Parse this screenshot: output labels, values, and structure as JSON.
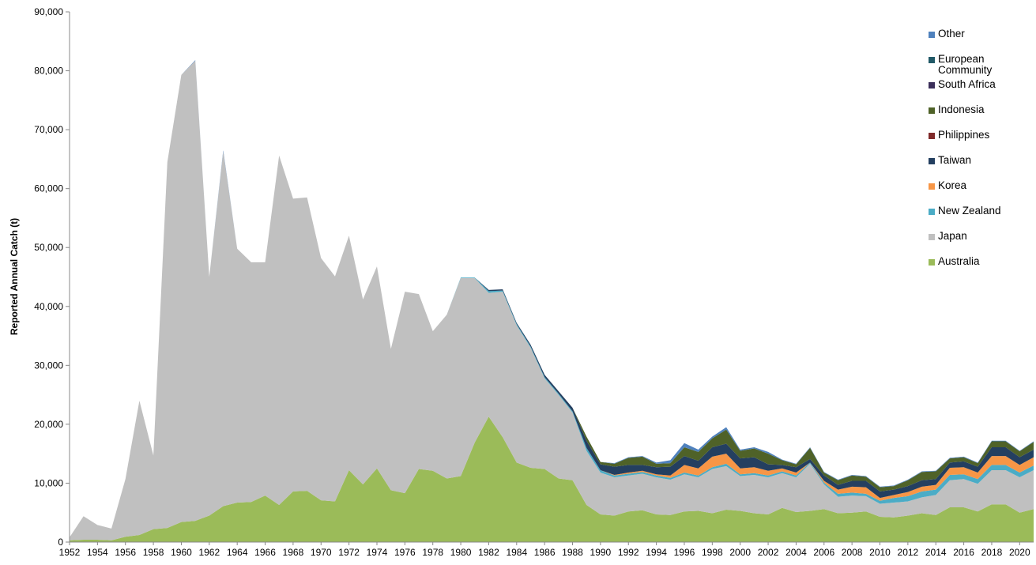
{
  "chart_data": {
    "type": "stacked-area",
    "y_label": "Reported Annual Catch (t)",
    "x": [
      1952,
      1953,
      1954,
      1955,
      1956,
      1957,
      1958,
      1959,
      1960,
      1961,
      1962,
      1963,
      1964,
      1965,
      1966,
      1967,
      1968,
      1969,
      1970,
      1971,
      1972,
      1973,
      1974,
      1975,
      1976,
      1977,
      1978,
      1979,
      1980,
      1981,
      1982,
      1983,
      1984,
      1985,
      1986,
      1987,
      1988,
      1989,
      1990,
      1991,
      1992,
      1993,
      1994,
      1995,
      1996,
      1997,
      1998,
      1999,
      2000,
      2001,
      2002,
      2003,
      2004,
      2005,
      2006,
      2007,
      2008,
      2009,
      2010,
      2011,
      2012,
      2013,
      2014,
      2015,
      2016,
      2017,
      2018,
      2019,
      2020,
      2021
    ],
    "xlim": [
      1952,
      2021
    ],
    "xticks": [
      1952,
      1954,
      1956,
      1958,
      1960,
      1962,
      1964,
      1966,
      1968,
      1970,
      1972,
      1974,
      1976,
      1978,
      1980,
      1982,
      1984,
      1986,
      1988,
      1990,
      1992,
      1994,
      1996,
      1998,
      2000,
      2002,
      2004,
      2006,
      2008,
      2010,
      2012,
      2014,
      2016,
      2018,
      2020
    ],
    "ylim": [
      0,
      90000
    ],
    "yticks": [
      0,
      {
        "value": 10000,
        "label": "10,000"
      },
      {
        "value": 20000,
        "label": "20,000"
      },
      {
        "value": 30000,
        "label": "30,000"
      },
      {
        "value": 40000,
        "label": "40,000"
      },
      {
        "value": 50000,
        "label": "50,000"
      },
      {
        "value": 60000,
        "label": "60,000"
      },
      {
        "value": 70000,
        "label": "70,000"
      },
      {
        "value": 80000,
        "label": "80,000"
      },
      {
        "value": 90000,
        "label": "90,000"
      }
    ],
    "grid": false,
    "legend": "top-right",
    "series": [
      {
        "name": "Australia",
        "color": "#9bbb59",
        "values": [
          300,
          400,
          400,
          300,
          900,
          1200,
          2200,
          2400,
          3400,
          3600,
          4500,
          6100,
          6700,
          6800,
          7900,
          6300,
          8600,
          8700,
          7100,
          6900,
          12200,
          9800,
          12500,
          8800,
          8300,
          12400,
          12100,
          10800,
          11200,
          16900,
          21300,
          17800,
          13500,
          12600,
          12400,
          10800,
          10500,
          6300,
          4700,
          4500,
          5200,
          5400,
          4700,
          4600,
          5200,
          5300,
          4900,
          5500,
          5300,
          4900,
          4700,
          5800,
          5100,
          5300,
          5600,
          4900,
          5000,
          5200,
          4300,
          4200,
          4500,
          4900,
          4600,
          5900,
          5900,
          5200,
          6400,
          6400,
          5000,
          5600
        ]
      },
      {
        "name": "Japan",
        "color": "#c0c0c0",
        "values": [
          500,
          4000,
          2500,
          2000,
          9800,
          22800,
          12500,
          62100,
          75900,
          78100,
          40500,
          60200,
          43100,
          40700,
          39600,
          59300,
          49700,
          49800,
          41100,
          38200,
          39800,
          31400,
          34300,
          24000,
          34200,
          29700,
          23700,
          27800,
          33600,
          27900,
          21000,
          24700,
          23300,
          20400,
          15400,
          14200,
          11500,
          9200,
          7100,
          6500,
          6100,
          6200,
          6300,
          6000,
          6300,
          5700,
          7500,
          7400,
          5900,
          6500,
          6300,
          5900,
          5900,
          8000,
          4200,
          2800,
          2900,
          2600,
          2200,
          2500,
          2400,
          2700,
          3400,
          4600,
          4800,
          4700,
          5800,
          5800,
          6000,
          6600
        ]
      },
      {
        "name": "New Zealand",
        "color": "#4bacc6",
        "values": [
          0,
          0,
          0,
          0,
          0,
          0,
          0,
          0,
          0,
          0,
          0,
          0,
          0,
          0,
          0,
          0,
          0,
          0,
          0,
          0,
          0,
          0,
          0,
          0,
          0,
          0,
          0,
          0,
          100,
          100,
          300,
          200,
          200,
          200,
          200,
          200,
          200,
          500,
          400,
          300,
          300,
          300,
          300,
          300,
          300,
          300,
          300,
          400,
          300,
          300,
          300,
          300,
          300,
          200,
          300,
          500,
          500,
          400,
          500,
          800,
          900,
          1000,
          900,
          900,
          800,
          800,
          900,
          900,
          800,
          800
        ]
      },
      {
        "name": "Korea",
        "color": "#f79646",
        "values": [
          0,
          0,
          0,
          0,
          0,
          0,
          0,
          0,
          0,
          0,
          0,
          0,
          0,
          0,
          0,
          0,
          0,
          0,
          0,
          0,
          0,
          0,
          0,
          0,
          0,
          0,
          0,
          0,
          0,
          0,
          0,
          0,
          0,
          0,
          0,
          0,
          0,
          0,
          0,
          100,
          200,
          200,
          200,
          400,
          1300,
          1200,
          1800,
          1700,
          1000,
          1000,
          800,
          500,
          500,
          0,
          300,
          700,
          1000,
          1100,
          500,
          500,
          700,
          800,
          800,
          1200,
          1200,
          1100,
          1500,
          1500,
          1300,
          1400
        ]
      },
      {
        "name": "Taiwan",
        "color": "#243f60",
        "values": [
          0,
          0,
          0,
          0,
          0,
          0,
          0,
          0,
          0,
          0,
          0,
          0,
          0,
          0,
          0,
          0,
          0,
          0,
          0,
          0,
          0,
          0,
          0,
          0,
          0,
          0,
          0,
          0,
          0,
          0,
          200,
          200,
          200,
          300,
          400,
          400,
          600,
          1200,
          1000,
          1400,
          1300,
          1000,
          1200,
          1500,
          1500,
          1300,
          1600,
          1700,
          1700,
          1700,
          1100,
          600,
          900,
          600,
          900,
          800,
          1000,
          1100,
          1100,
          900,
          1000,
          1100,
          1000,
          900,
          1000,
          1000,
          1500,
          1500,
          1300,
          1300
        ]
      },
      {
        "name": "Philippines",
        "color": "#7f2a2a",
        "values": [
          0,
          0,
          0,
          0,
          0,
          0,
          0,
          0,
          0,
          0,
          0,
          0,
          0,
          0,
          0,
          0,
          0,
          0,
          0,
          0,
          0,
          0,
          0,
          0,
          0,
          0,
          0,
          0,
          0,
          0,
          0,
          0,
          0,
          0,
          0,
          0,
          0,
          0,
          0,
          0,
          0,
          0,
          0,
          0,
          0,
          0,
          0,
          0,
          0,
          0,
          0,
          0,
          0,
          0,
          0,
          0,
          0,
          0,
          0,
          0,
          0,
          0,
          0,
          0,
          0,
          0,
          0,
          0,
          0,
          0
        ]
      },
      {
        "name": "Indonesia",
        "color": "#4f6228",
        "values": [
          0,
          0,
          0,
          0,
          0,
          0,
          0,
          0,
          0,
          0,
          0,
          0,
          0,
          0,
          0,
          0,
          0,
          0,
          0,
          0,
          0,
          0,
          0,
          0,
          0,
          0,
          0,
          0,
          0,
          0,
          0,
          0,
          0,
          0,
          0,
          0,
          0,
          700,
          400,
          500,
          1200,
          1400,
          600,
          600,
          1500,
          1500,
          1500,
          2400,
          1300,
          1500,
          1800,
          800,
          500,
          1900,
          500,
          800,
          900,
          700,
          700,
          600,
          1000,
          1400,
          1300,
          700,
          700,
          600,
          1000,
          1000,
          1000,
          1300
        ]
      },
      {
        "name": "South Africa",
        "color": "#3b2f5a",
        "values": [
          0,
          0,
          0,
          0,
          0,
          0,
          0,
          0,
          0,
          0,
          0,
          0,
          0,
          0,
          0,
          0,
          0,
          0,
          0,
          0,
          0,
          0,
          0,
          0,
          0,
          0,
          0,
          0,
          0,
          0,
          0,
          0,
          0,
          0,
          0,
          0,
          0,
          0,
          0,
          0,
          0,
          0,
          0,
          0,
          0,
          0,
          0,
          0,
          0,
          0,
          0,
          0,
          0,
          0,
          0,
          0,
          0,
          0,
          0,
          0,
          0,
          0,
          0,
          0,
          0,
          0,
          0,
          0,
          0,
          0
        ]
      },
      {
        "name": "European Community",
        "color": "#215967",
        "values": [
          0,
          0,
          0,
          0,
          0,
          0,
          0,
          0,
          0,
          0,
          0,
          0,
          0,
          0,
          0,
          0,
          0,
          0,
          0,
          0,
          0,
          0,
          0,
          0,
          0,
          0,
          0,
          0,
          0,
          0,
          0,
          0,
          0,
          0,
          0,
          0,
          0,
          0,
          0,
          0,
          0,
          0,
          0,
          0,
          0,
          0,
          0,
          0,
          0,
          0,
          0,
          0,
          0,
          0,
          0,
          0,
          0,
          0,
          0,
          0,
          0,
          0,
          0,
          0,
          0,
          0,
          0,
          0,
          0,
          0
        ]
      },
      {
        "name": "Other",
        "color": "#4f81bd",
        "values": [
          0,
          0,
          0,
          0,
          0,
          0,
          0,
          0,
          0,
          100,
          0,
          200,
          0,
          0,
          0,
          0,
          0,
          0,
          0,
          0,
          0,
          0,
          0,
          0,
          0,
          0,
          0,
          0,
          0,
          0,
          0,
          0,
          0,
          0,
          0,
          0,
          0,
          0,
          0,
          100,
          100,
          100,
          200,
          500,
          700,
          400,
          300,
          400,
          200,
          200,
          300,
          100,
          100,
          100,
          100,
          100,
          100,
          100,
          100,
          100,
          100,
          100,
          100,
          100,
          100,
          100,
          100,
          100,
          100,
          100
        ]
      }
    ]
  }
}
